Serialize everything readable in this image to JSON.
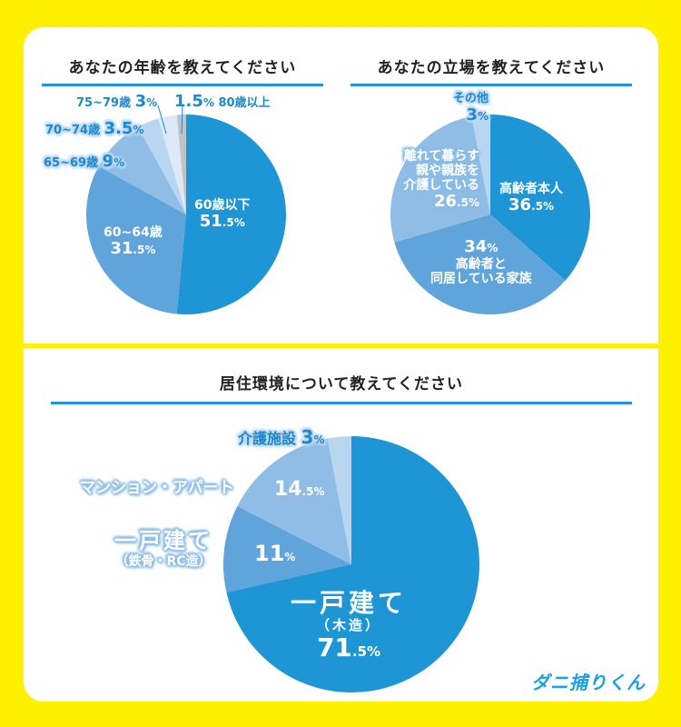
{
  "colors": {
    "background": "#fff000",
    "accent_rule": "#1e95d4",
    "slice_1": "#1e95d4",
    "slice_2": "#5fa5dc",
    "slice_3": "#8fbde6",
    "slice_4": "#b9d6f1",
    "slice_5": "#dde9f7",
    "slice_6": "#c0c4c7"
  },
  "brand": {
    "logo_text": "ダニ捕りくん"
  },
  "chart_data": [
    {
      "type": "pie",
      "title": "あなたの年齢を教えてください",
      "categories": [
        "60歳以下",
        "60~64歳",
        "65~69歳",
        "70~74歳",
        "75~79歳",
        "80歳以上"
      ],
      "values": [
        51.5,
        31.5,
        9,
        3.5,
        3,
        1.5
      ],
      "unit": "%",
      "start": "12 o'clock, clockwise"
    },
    {
      "type": "pie",
      "title": "あなたの立場を教えてください",
      "categories": [
        "高齢者本人",
        "高齢者と同居している家族",
        "離れて暮らす親や親族を介護している",
        "その他"
      ],
      "values": [
        36.5,
        34,
        26.5,
        3
      ],
      "unit": "%",
      "start": "12 o'clock, clockwise"
    },
    {
      "type": "pie",
      "title": "居住環境について教えてください",
      "categories": [
        "一戸建て（木造）",
        "一戸建て（鉄骨・RC造）",
        "マンション・アパート",
        "介護施設"
      ],
      "values": [
        71.5,
        11,
        14.5,
        3
      ],
      "unit": "%",
      "start": "12 o'clock, clockwise"
    }
  ],
  "labels": {
    "age": {
      "s1_name": "60歳以下",
      "s1_int": "51",
      "s1_dec": ".5%",
      "s2_name": "60~64歳",
      "s2_int": "31",
      "s2_dec": ".5%",
      "s3_name": "65~69歳",
      "s3_val": "9",
      "s3_pct": "%",
      "s4_name": "70~74歳",
      "s4_val": "3.5",
      "s4_pct": "%",
      "s5_name": "75~79歳",
      "s5_val": "3",
      "s5_pct": "%",
      "s6_val": "1.5",
      "s6_pct": "%",
      "s6_name": "80歳以上"
    },
    "role": {
      "s1_name": "高齢者本人",
      "s1_int": "36",
      "s1_dec": ".5%",
      "s2_val": "34",
      "s2_pct": "%",
      "s2_line1": "高齢者と",
      "s2_line2": "同居している家族",
      "s3_line1": "離れて暮らす",
      "s3_line2": "親や親族を",
      "s3_line3": "介護している",
      "s3_int": "26",
      "s3_dec": ".5%",
      "s4_name": "その他",
      "s4_val": "3",
      "s4_pct": "%"
    },
    "housing": {
      "s1_line1": "一戸建て",
      "s1_line2": "（木造）",
      "s1_int": "71",
      "s1_dec": ".5%",
      "s2_line1": "一戸建て",
      "s2_line2": "（鉄骨・RC造）",
      "s2_val": "11",
      "s2_pct": "%",
      "s3_name": "マンション・アパート",
      "s3_int": "14",
      "s3_dec": ".5%",
      "s4_name": "介護施設",
      "s4_val": "3",
      "s4_pct": "%"
    }
  }
}
